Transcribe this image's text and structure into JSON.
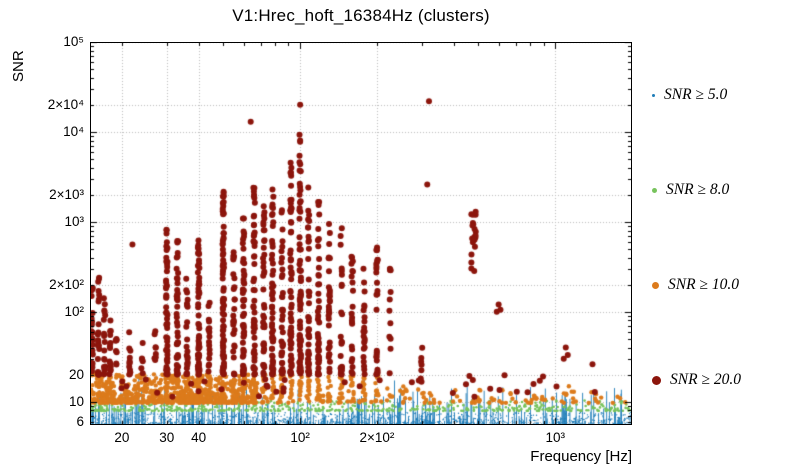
{
  "chart_data": {
    "type": "scatter",
    "title": "V1:Hrec_hoft_16384Hz (clusters)",
    "xlabel": "Frequency [Hz]",
    "ylabel": "SNR",
    "xscale": "log",
    "yscale": "log",
    "xlim": [
      15,
      2000
    ],
    "ylim": [
      5.5,
      100000
    ],
    "grid": true,
    "grid_color": "#bdbdbd",
    "frame_color": "#000000",
    "xticks": [
      {
        "v": 20,
        "label": "20"
      },
      {
        "v": 30,
        "label": "30"
      },
      {
        "v": 40,
        "label": "40"
      },
      {
        "v": 100,
        "label": "10²"
      },
      {
        "v": 200,
        "label": "2×10²"
      },
      {
        "v": 1000,
        "label": "10³"
      }
    ],
    "yticks": [
      {
        "v": 6,
        "label": "6"
      },
      {
        "v": 10,
        "label": "10"
      },
      {
        "v": 20,
        "label": "20"
      },
      {
        "v": 100,
        "label": "10²"
      },
      {
        "v": 200,
        "label": "2×10²"
      },
      {
        "v": 1000,
        "label": "10³"
      },
      {
        "v": 2000,
        "label": "2×10³"
      },
      {
        "v": 10000,
        "label": "10⁴"
      },
      {
        "v": 20000,
        "label": "2×10⁴"
      },
      {
        "v": 100000,
        "label": "10⁵"
      }
    ],
    "legend": {
      "position": "right",
      "items": [
        {
          "label": "SNR ≥ 5.0",
          "color": "#1d7cb8",
          "marker_px": 3,
          "top": 84
        },
        {
          "label": "SNR ≥ 8.0",
          "color": "#77c35c",
          "marker_px": 5,
          "top": 179
        },
        {
          "label": "SNR ≥ 10.0",
          "color": "#dc7b1c",
          "marker_px": 7,
          "top": 274
        },
        {
          "label": "SNR ≥ 20.0",
          "color": "#8c150c",
          "marker_px": 9,
          "top": 369
        }
      ]
    },
    "series": [
      {
        "name": "SNR ≥ 5.0",
        "threshold": 5.0,
        "color": "#1d7cb8",
        "marker_px": 0.7,
        "needles": {
          "fmin": 15,
          "fmax": 2000,
          "count": 430,
          "snr_base": 5.6,
          "top_exp": 0.42,
          "top_pow": 2.6
        },
        "band": {
          "fmin": 15,
          "fmax": 2000,
          "count": 1200,
          "snr_min": 5.5,
          "exp": 0.14,
          "pow": 2.0
        }
      },
      {
        "name": "SNR ≥ 8.0",
        "threshold": 8.0,
        "color": "#77c35c",
        "marker_px": 1.3,
        "band": {
          "fmin": 15,
          "fmax": 2000,
          "count": 560,
          "snr_min": 7.9,
          "exp": 0.115,
          "pow": 2.2,
          "f_pow": 1.25
        }
      },
      {
        "name": "SNR ≥ 10.0",
        "threshold": 10.0,
        "color": "#dc7b1c",
        "marker_px": 2.2,
        "band": {
          "fmin": 15,
          "fmax": 68,
          "count": 650,
          "snr_min": 9.7,
          "exp": 0.32,
          "pow": 1.9
        },
        "columns_f": [
          30,
          33,
          36,
          40,
          44,
          50,
          55,
          60,
          66,
          72,
          78,
          85,
          92,
          100,
          108,
          118,
          130,
          145,
          160,
          178,
          200
        ],
        "column_n": 13,
        "sparse": {
          "fmin": 68,
          "fmax": 2000,
          "count": 90,
          "snr_min": 9.7,
          "exp": 0.16,
          "pow": 2.5
        },
        "spots": [
          [
            470,
            520,
            7,
            10,
            14
          ],
          [
            1020,
            1200,
            9,
            10,
            19
          ],
          [
            1340,
            1460,
            3,
            10,
            13
          ],
          [
            820,
            900,
            4,
            10,
            12
          ],
          [
            555,
            585,
            3,
            10,
            12
          ],
          [
            240,
            262,
            5,
            10,
            16
          ],
          [
            298,
            330,
            5,
            10,
            15
          ]
        ]
      },
      {
        "name": "SNR ≥ 20.0",
        "threshold": 20.0,
        "color": "#8c150c",
        "marker_px": 3.0,
        "column_base": 20,
        "columns": [
          [
            15.3,
            300,
            22
          ],
          [
            16.2,
            280,
            26
          ],
          [
            17.1,
            160,
            18
          ],
          [
            18,
            120,
            14
          ],
          [
            19,
            60,
            8
          ],
          [
            21.5,
            100,
            12
          ],
          [
            24,
            45,
            6
          ],
          [
            27,
            70,
            8
          ],
          [
            30,
            850,
            55
          ],
          [
            33,
            700,
            45
          ],
          [
            36,
            260,
            22
          ],
          [
            40,
            720,
            60
          ],
          [
            44,
            300,
            18
          ],
          [
            50,
            2300,
            80
          ],
          [
            55,
            650,
            28
          ],
          [
            60,
            1100,
            55
          ],
          [
            66,
            2600,
            55
          ],
          [
            72,
            1500,
            40
          ],
          [
            78,
            3600,
            55
          ],
          [
            85,
            1600,
            40
          ],
          [
            92,
            4600,
            60
          ],
          [
            100,
            9500,
            75
          ],
          [
            108,
            2600,
            45
          ],
          [
            118,
            2100,
            45
          ],
          [
            130,
            1000,
            30
          ],
          [
            145,
            900,
            28
          ],
          [
            160,
            480,
            22
          ],
          [
            178,
            560,
            22
          ],
          [
            200,
            520,
            26
          ],
          [
            225,
            310,
            12
          ],
          [
            300,
            60,
            5
          ]
        ],
        "tall_clusters": [
          [
            480,
            280,
            1300,
            20
          ]
        ],
        "outliers": [
          [
            22,
            560
          ],
          [
            64,
            13000
          ],
          [
            100,
            20000
          ],
          [
            320,
            22000
          ],
          [
            315,
            2600
          ],
          [
            1100,
            40
          ],
          [
            1120,
            33
          ],
          [
            1080,
            30
          ],
          [
            1400,
            26
          ],
          [
            600,
            120
          ],
          [
            610,
            105
          ],
          [
            590,
            100
          ]
        ],
        "scatter": {
          "fmin": 18,
          "fmax": 1500,
          "count": 42,
          "snr_min": 11,
          "exp": 0.26
        }
      }
    ]
  }
}
